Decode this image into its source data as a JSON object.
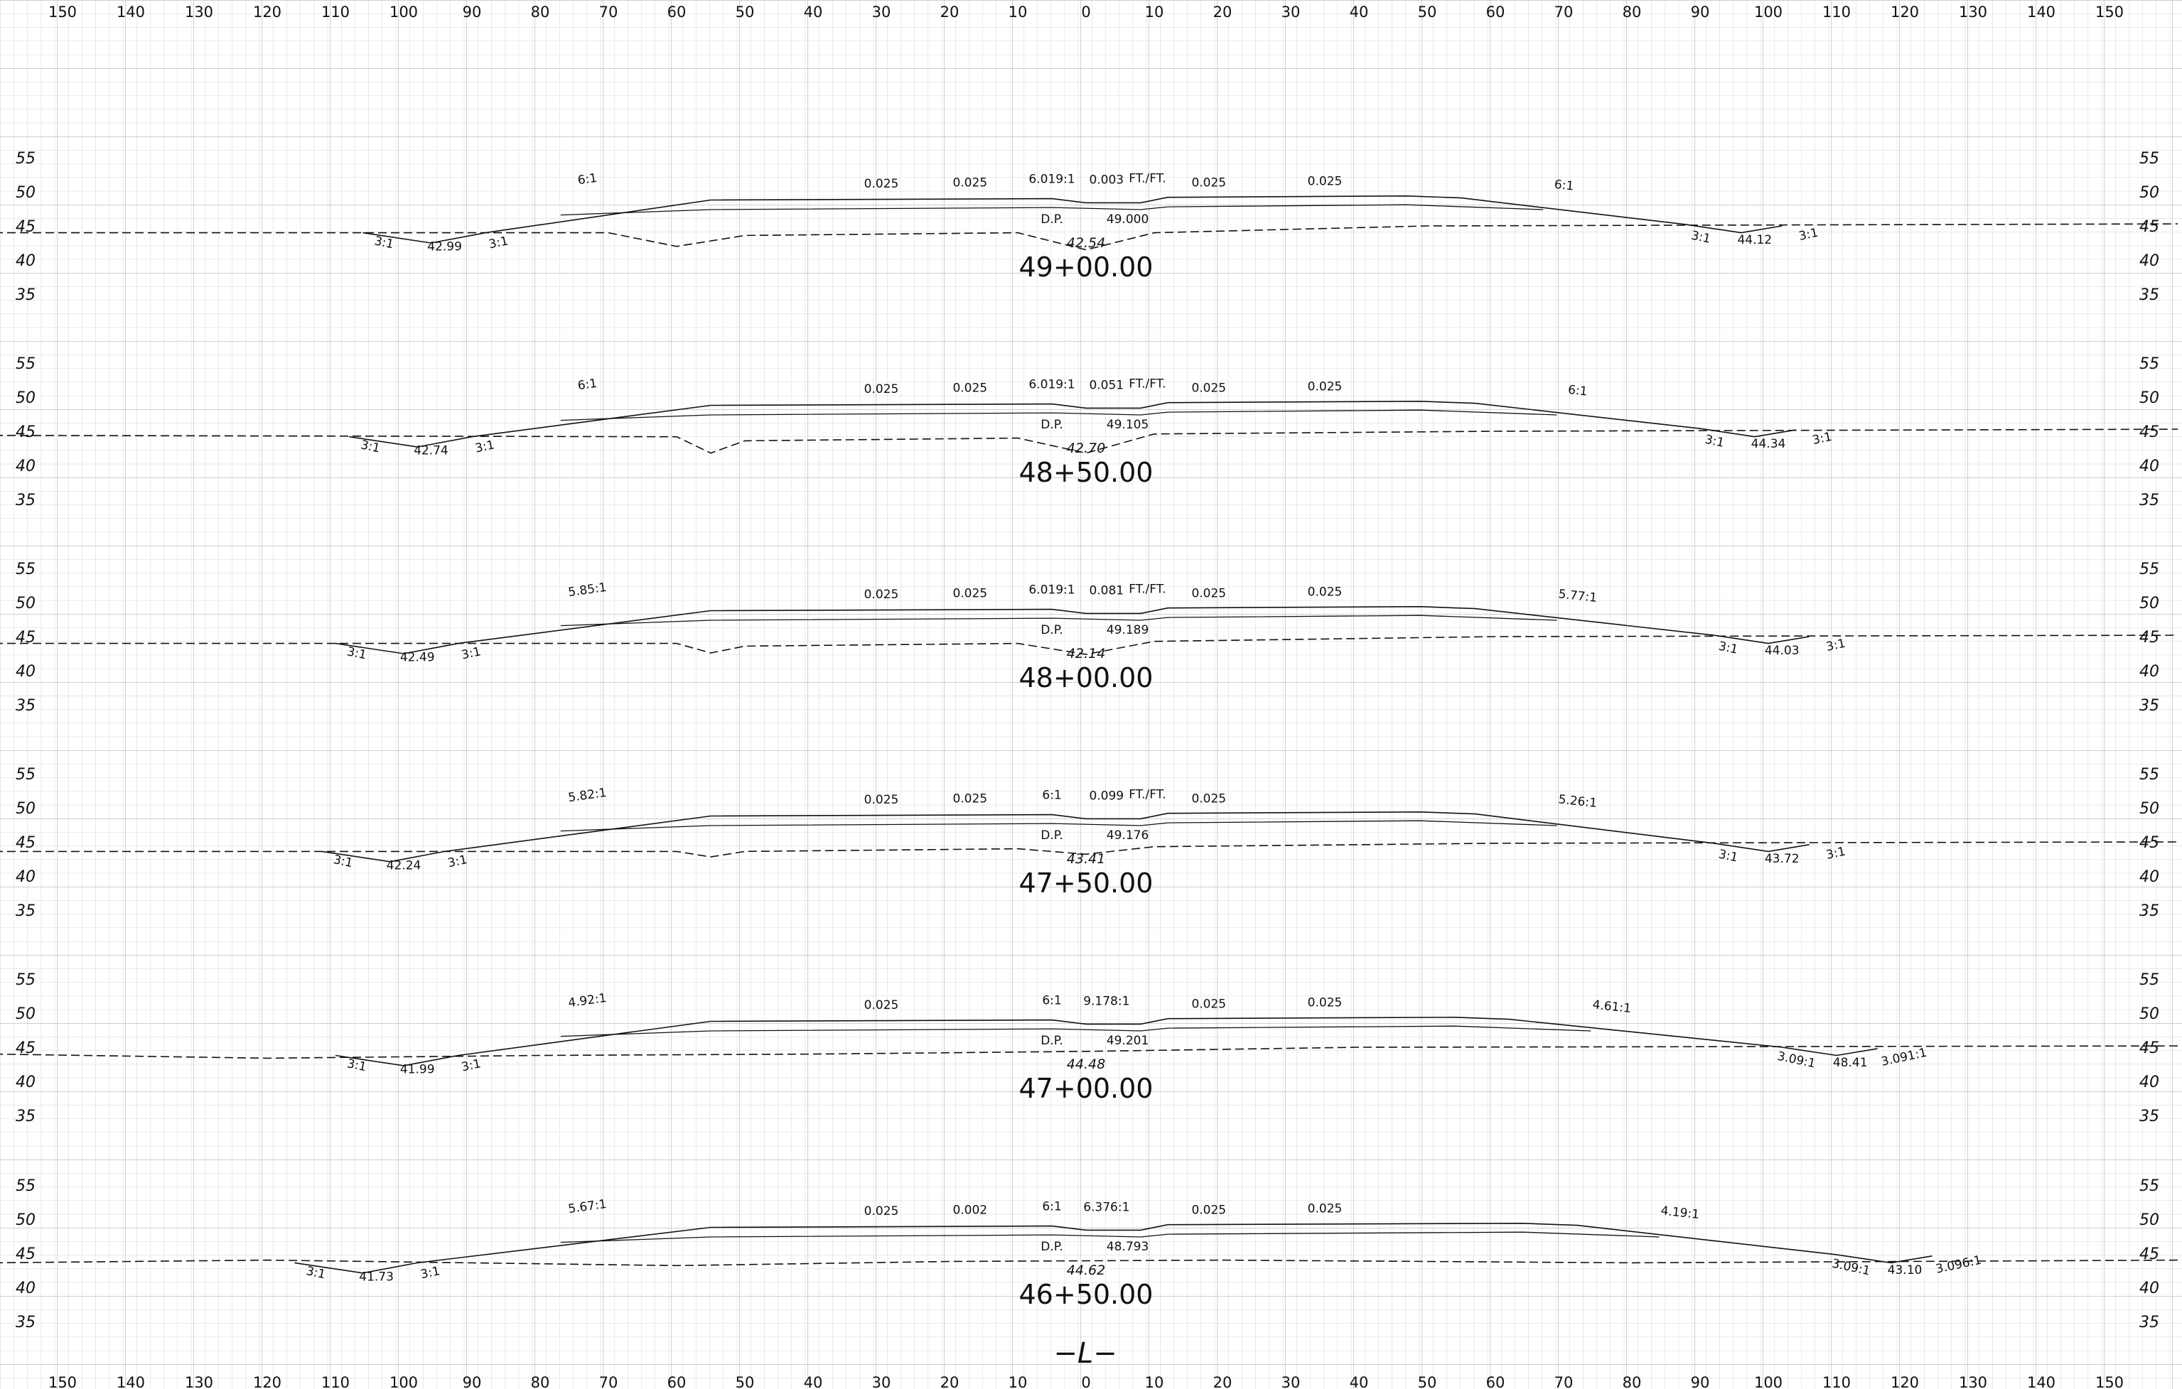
{
  "sheet": {
    "offset_labels": [
      "150",
      "140",
      "130",
      "120",
      "110",
      "100",
      "90",
      "80",
      "70",
      "60",
      "50",
      "40",
      "30",
      "20",
      "10",
      "0",
      "10",
      "20",
      "30",
      "40",
      "50",
      "60",
      "70",
      "80",
      "90",
      "100",
      "110",
      "120",
      "130",
      "140",
      "150"
    ],
    "elevation_labels": [
      "55",
      "50",
      "45",
      "40",
      "35"
    ],
    "baseline_label": "−L−"
  },
  "sections": [
    {
      "station": "49+00.00",
      "labels": {
        "lslope_fill": "6:1",
        "lw1": "0.025",
        "lw2": "0.025",
        "lcross": "6.019:1",
        "cslope": "0.003",
        "ftft": "FT./FT.",
        "rw1": "0.025",
        "rw2": "0.025",
        "rslope_fill": "6:1",
        "ditch_l1": "3:1",
        "ditch_l_elev": "42.99",
        "ditch_l2": "3:1",
        "ditch_r1": "3:1",
        "ditch_r_elev": "44.12",
        "ditch_r2": "3:1",
        "dp": "D.P.",
        "dp_elev": "49.000",
        "ground_elev": "42.54"
      }
    },
    {
      "station": "48+50.00",
      "labels": {
        "lslope_fill": "6:1",
        "lw1": "0.025",
        "lw2": "0.025",
        "lcross": "6.019:1",
        "cslope": "0.051",
        "ftft": "FT./FT.",
        "rw1": "0.025",
        "rw2": "0.025",
        "rslope_fill": "6:1",
        "ditch_l1": "3:1",
        "ditch_l_elev": "42.74",
        "ditch_l2": "3:1",
        "ditch_r1": "3:1",
        "ditch_r_elev": "44.34",
        "ditch_r2": "3:1",
        "dp": "D.P.",
        "dp_elev": "49.105",
        "ground_elev": "42.70"
      }
    },
    {
      "station": "48+00.00",
      "labels": {
        "lslope_fill": "5.85:1",
        "lw1": "0.025",
        "lw2": "0.025",
        "lcross": "6.019:1",
        "cslope": "0.081",
        "ftft": "FT./FT.",
        "rw1": "0.025",
        "rw2": "0.025",
        "rslope_fill": "5.77:1",
        "ditch_l1": "3:1",
        "ditch_l_elev": "42.49",
        "ditch_l2": "3:1",
        "ditch_r1": "3:1",
        "ditch_r_elev": "44.03",
        "ditch_r2": "3:1",
        "dp": "D.P.",
        "dp_elev": "49.189",
        "ground_elev": "42.14"
      }
    },
    {
      "station": "47+50.00",
      "labels": {
        "lslope_fill": "5.82:1",
        "lw1": "0.025",
        "lw2": "0.025",
        "lcross": "6:1",
        "cslope": "0.099",
        "ftft": "FT./FT.",
        "rw1": "0.025",
        "rw2": "",
        "rslope_fill": "5.26:1",
        "ditch_l1": "3:1",
        "ditch_l_elev": "42.24",
        "ditch_l2": "3:1",
        "ditch_r1": "3:1",
        "ditch_r_elev": "43.72",
        "ditch_r2": "3:1",
        "dp": "D.P.",
        "dp_elev": "49.176",
        "ground_elev": "43.41"
      }
    },
    {
      "station": "47+00.00",
      "labels": {
        "lslope_fill": "4.92:1",
        "lw1": "0.025",
        "lw2": "",
        "lcross": "6:1",
        "cslope": "9.178:1",
        "ftft": "",
        "rw1": "0.025",
        "rw2": "0.025",
        "rslope_fill": "4.61:1",
        "ditch_l1": "3:1",
        "ditch_l_elev": "41.99",
        "ditch_l2": "3:1",
        "ditch_r1": "3.09:1",
        "ditch_r_elev": "48.41",
        "ditch_r2": "3.091:1",
        "dp": "D.P.",
        "dp_elev": "49.201",
        "ground_elev": "44.48"
      }
    },
    {
      "station": "46+50.00",
      "labels": {
        "lslope_fill": "5.67:1",
        "lw1": "0.025",
        "lw2": "0.002",
        "lcross": "6:1",
        "cslope": "6.376:1",
        "ftft": "",
        "rw1": "0.025",
        "rw2": "0.025",
        "rslope_fill": "4.19:1",
        "ditch_l1": "3:1",
        "ditch_l_elev": "41.73",
        "ditch_l2": "3:1",
        "ditch_r1": "3.09:1",
        "ditch_r_elev": "43.10",
        "ditch_r2": "3.096:1",
        "dp": "D.P.",
        "dp_elev": "48.793",
        "ground_elev": "44.62"
      }
    }
  ],
  "colors": {
    "grid_minor": "#d6d6d6",
    "grid_major": "#b4b4b4",
    "ink": "#111111"
  }
}
